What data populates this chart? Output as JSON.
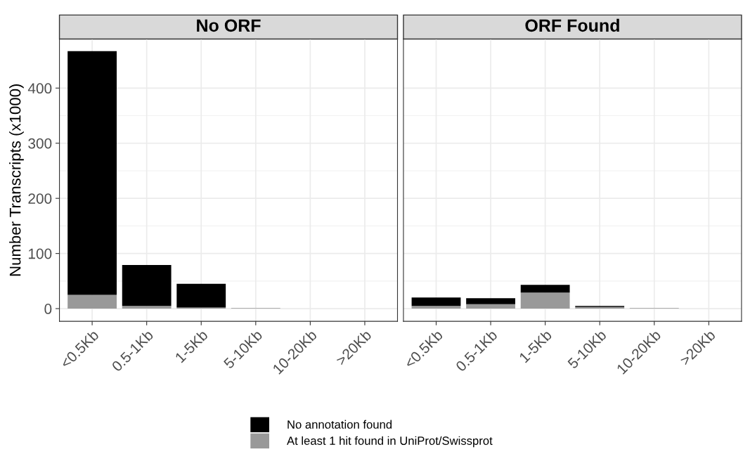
{
  "chart_data": [
    {
      "type": "bar",
      "title": "No ORF",
      "ylabel": "Number Transcripts (x1000)",
      "stacked": true,
      "categories": [
        "<0.5Kb",
        "0.5-1Kb",
        "1-5Kb",
        "5-10Kb",
        "10-20Kb",
        ">20Kb"
      ],
      "series": [
        {
          "name": "At least 1 hit found in UniProt/Swissprot",
          "color": "#999999",
          "values": [
            25,
            5,
            2,
            1,
            0,
            0
          ]
        },
        {
          "name": "No annotation found",
          "color": "#000000",
          "values": [
            442,
            74,
            43,
            0,
            0,
            0
          ]
        }
      ],
      "ylim": [
        -23,
        489
      ],
      "yticks": [
        0,
        100,
        200,
        300,
        400
      ],
      "grid": true,
      "legend": "bottom",
      "tick_labels": "xy"
    },
    {
      "type": "bar",
      "title": "ORF Found",
      "stacked": true,
      "categories": [
        "<0.5Kb",
        "0.5-1Kb",
        "1-5Kb",
        "5-10Kb",
        "10-20Kb",
        ">20Kb"
      ],
      "series": [
        {
          "color": "#999999",
          "values": [
            5,
            8,
            29,
            3,
            1,
            0
          ]
        },
        {
          "color": "#000000",
          "values": [
            15,
            11,
            14,
            2,
            0,
            0
          ]
        }
      ],
      "ylim": [
        -23,
        489
      ],
      "yticks": [
        0,
        100,
        200,
        300,
        400
      ],
      "grid": true,
      "legend": false,
      "tick_labels": "x"
    }
  ]
}
